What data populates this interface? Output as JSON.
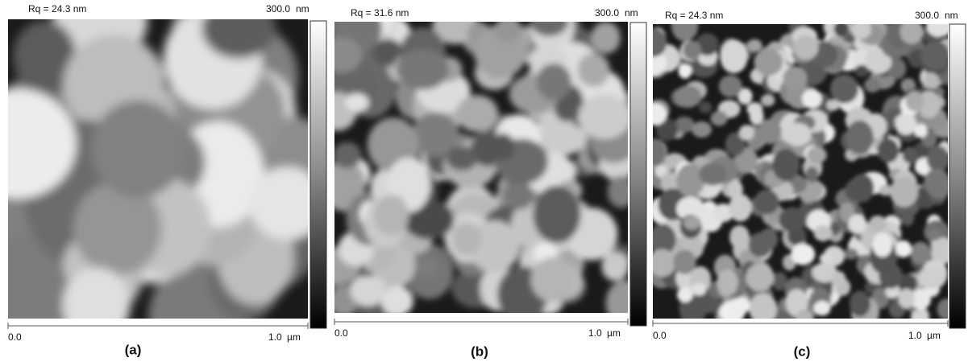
{
  "panels": [
    {
      "rq": "Rq = 24.3 nm",
      "scale_max": "300.0",
      "scale_unit": "nm",
      "x_start": "0.0",
      "x_end": "1.0",
      "x_unit": "µm",
      "label": "(a)"
    },
    {
      "rq": "Rq = 31.6 nm",
      "scale_max": "300.0",
      "scale_unit": "nm",
      "x_start": "0.0",
      "x_end": "1.0",
      "x_unit": "µm",
      "label": "(b)"
    },
    {
      "rq": "Rq = 24.3 nm",
      "scale_max": "300.0",
      "scale_unit": "nm",
      "x_start": "0.0",
      "x_end": "1.0",
      "x_unit": "µm",
      "label": "(c)"
    }
  ]
}
